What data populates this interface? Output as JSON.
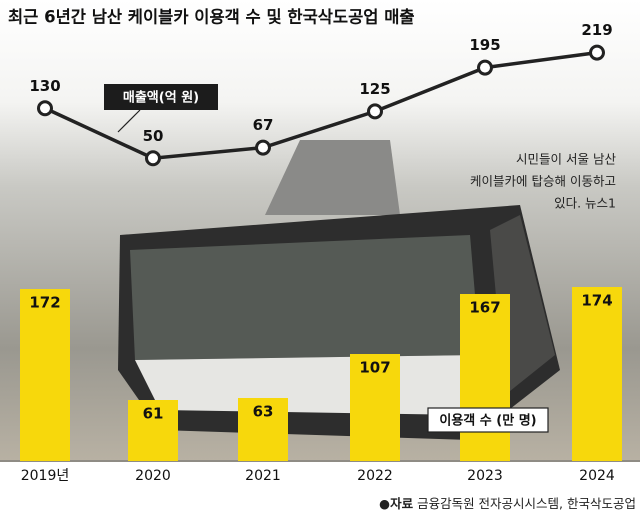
{
  "chart_data": {
    "type": "bar",
    "title": "최근 6년간 남산 케이블카 이용객 수 및 한국삭도공업 매출",
    "categories": [
      "2019년",
      "2020",
      "2021",
      "2022",
      "2023",
      "2024"
    ],
    "series": [
      {
        "name": "이용객 수 (만 명)",
        "type": "bar",
        "color": "#f7d80c",
        "values": [
          172,
          61,
          63,
          107,
          167,
          174
        ]
      },
      {
        "name": "매출액(억 원)",
        "type": "line",
        "color": "#222222",
        "values": [
          130,
          50,
          67,
          125,
          195,
          219
        ]
      }
    ],
    "caption": [
      "시민들이 서울 남산",
      "케이블카에 탑승해 이동하고",
      "있다. 뉴스1"
    ],
    "source_label": "●자료",
    "source": "금융감독원 전자공시시스템, 한국삭도공업"
  }
}
